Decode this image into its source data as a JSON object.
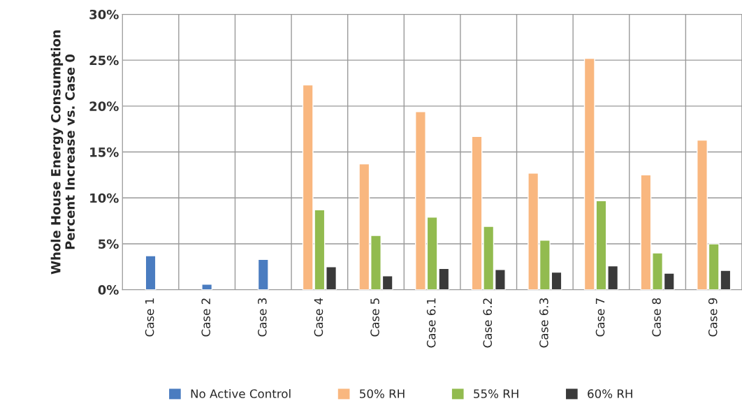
{
  "chart_data": {
    "type": "bar",
    "ylabel": "Whole House Energy Consumption\nPercent Increase vs. Case 0",
    "categories": [
      "Case 1",
      "Case 2",
      "Case 3",
      "Case 4",
      "Case 5",
      "Case 6.1",
      "Case 6.2",
      "Case 6.3",
      "Case 7",
      "Case 8",
      "Case 9"
    ],
    "series": [
      {
        "name": "No Active Control",
        "color": "#4a7cc0",
        "values": [
          3.7,
          0.6,
          3.3,
          null,
          null,
          null,
          null,
          null,
          null,
          null,
          null
        ]
      },
      {
        "name": "50% RH",
        "color": "#f9b77f",
        "values": [
          null,
          null,
          null,
          22.3,
          13.7,
          19.4,
          16.7,
          12.7,
          25.2,
          12.5,
          16.3
        ]
      },
      {
        "name": "55% RH",
        "color": "#92bb4f",
        "values": [
          null,
          null,
          null,
          8.7,
          5.9,
          7.9,
          6.9,
          5.4,
          9.7,
          4.0,
          5.0
        ]
      },
      {
        "name": "60% RH",
        "color": "#3a3a3a",
        "values": [
          null,
          null,
          null,
          2.5,
          1.5,
          2.3,
          2.2,
          1.9,
          2.6,
          1.8,
          2.1
        ]
      }
    ],
    "ylim": [
      0,
      30
    ],
    "yticks": [
      {
        "value": 0,
        "label": "0%"
      },
      {
        "value": 5,
        "label": "5%"
      },
      {
        "value": 10,
        "label": "10%"
      },
      {
        "value": 15,
        "label": "15%"
      },
      {
        "value": 20,
        "label": "20%"
      },
      {
        "value": 25,
        "label": "25%"
      },
      {
        "value": 30,
        "label": "30%"
      }
    ],
    "grid": true,
    "legend": "bottom"
  }
}
